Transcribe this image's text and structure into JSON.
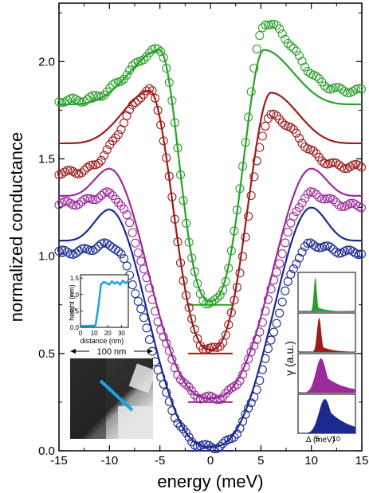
{
  "chart_data": {
    "type": "line",
    "xlabel": "energy (meV)",
    "ylabel": "normalized conductance",
    "xlim": [
      -15,
      15
    ],
    "ylim": [
      0,
      2.3
    ],
    "x_ticks": [
      "-15",
      "-10",
      "-5",
      "0",
      "5",
      "10",
      "15"
    ],
    "y_ticks": [
      "0.0",
      "0.5",
      "1.0",
      "1.5",
      "2.0"
    ],
    "grid": false,
    "series": [
      {
        "color": "#2ca02c",
        "offset": 0.75,
        "data_peaks": {
          "left": [
            -5.0,
            2.06
          ],
          "right": [
            5.5,
            2.2
          ],
          "bottom": 0.76,
          "plateau_left": 1.8,
          "plateau_right": 1.85
        },
        "fit_peaks": {
          "left": [
            -5.0,
            2.06
          ],
          "right": [
            5.3,
            2.06
          ],
          "bottom": 0.77,
          "plateau": 1.78
        }
      },
      {
        "color": "#9b1c1c",
        "offset": 0.5,
        "data_peaks": {
          "left": [
            -6.0,
            1.85
          ],
          "right": [
            6.0,
            1.72
          ],
          "bottom": 0.52,
          "plateau_left": 1.43,
          "plateau_right": 1.46
        },
        "fit_peaks": {
          "left": [
            -6.0,
            1.85
          ],
          "right": [
            6.0,
            1.84
          ],
          "bottom": 0.52,
          "plateau": 1.58
        }
      },
      {
        "color": "#9b2a9b",
        "offset": 0.25,
        "data_peaks": {
          "left": [
            -10.0,
            1.32
          ],
          "right": [
            10.0,
            1.32
          ],
          "bottom": 0.27,
          "plateau_left": 1.27,
          "plateau_right": 1.26
        },
        "fit_peaks": {
          "left": [
            -10.0,
            1.45
          ],
          "right": [
            10.0,
            1.45
          ],
          "bottom": 0.27,
          "plateau": 1.31
        }
      },
      {
        "color": "#1c2a8f",
        "offset": 0.0,
        "data_peaks": {
          "left": [
            -10.0,
            1.06
          ],
          "right": [
            10.0,
            1.06
          ],
          "bottom": 0.02,
          "plateau_left": 1.02,
          "plateau_right": 1.02
        },
        "fit_peaks": {
          "left": [
            -10.0,
            1.24
          ],
          "right": [
            10.0,
            1.25
          ],
          "bottom": 0.02,
          "plateau": 1.08
        }
      }
    ],
    "inset_height_profile": {
      "xlabel": "distance (nm)",
      "ylabel": "height (nm)",
      "xlim": [
        0,
        35
      ],
      "ylim": [
        0,
        1.6
      ],
      "x_ticks": [
        "0",
        "10",
        "20",
        "30"
      ],
      "y_ticks": [
        "0.0",
        "0.5",
        "1.0",
        "1.5"
      ],
      "x": [
        0,
        3,
        6,
        9,
        11,
        13,
        15,
        17,
        19,
        21,
        23,
        25,
        27,
        29,
        31,
        33,
        35
      ],
      "y": [
        0.05,
        0.04,
        0.05,
        0.05,
        0.06,
        0.6,
        1.3,
        1.38,
        1.35,
        1.3,
        1.4,
        1.33,
        1.38,
        1.3,
        1.42,
        1.35,
        1.4
      ],
      "color": "#1aa3e8"
    },
    "inset_afm": {
      "scale_label": "100 nm",
      "line_color": "#1aa3e8"
    },
    "inset_gamma": {
      "ylabel": "γ (a.u.)",
      "xlabel": "Δ (meV)",
      "x_ticks": [
        "5",
        "10"
      ],
      "xlim": [
        0,
        15
      ],
      "panels": [
        {
          "color": "#2ca02c",
          "peak": 4.5,
          "width": 1.0,
          "tail": 0.15
        },
        {
          "color": "#9b1c1c",
          "peak": 5.5,
          "width": 1.4,
          "tail": 0.2
        },
        {
          "color": "#9b2a9b",
          "peak": 6.0,
          "width": 3.5,
          "tail": 0.6
        },
        {
          "color": "#1c2a8f",
          "peak": 7.0,
          "width": 4.0,
          "tail": 0.8
        }
      ]
    }
  }
}
